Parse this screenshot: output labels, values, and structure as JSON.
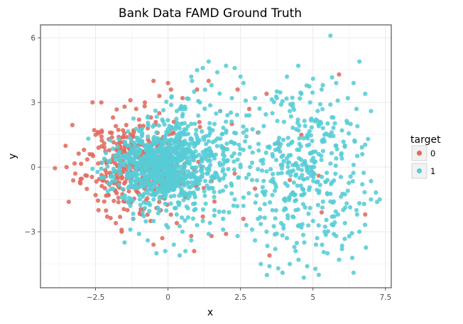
{
  "chart_data": {
    "type": "scatter",
    "title": "Bank Data FAMD Ground Truth",
    "xlabel": "x",
    "ylabel": "y",
    "xlim": [
      -4.4,
      7.7
    ],
    "ylim": [
      -5.6,
      6.6
    ],
    "xticks": [
      -2.5,
      0,
      2.5,
      5,
      7.5
    ],
    "xtick_labels": [
      "−2.5",
      "0",
      "2.5",
      "5",
      "7.5"
    ],
    "yticks": [
      -3,
      0,
      3,
      6
    ],
    "ytick_labels": [
      "−3",
      "0",
      "3",
      "6"
    ],
    "grid": true,
    "legend": {
      "title": "target",
      "position": "right"
    },
    "series": [
      {
        "name": "0",
        "color": "#e06b5e",
        "points": [
          [
            -3.9,
            -0.05
          ],
          [
            -3.5,
            0.0
          ],
          [
            -3.3,
            1.95
          ],
          [
            -3.2,
            -0.3
          ],
          [
            -3.0,
            0.15
          ],
          [
            -2.9,
            0.8
          ],
          [
            -2.8,
            -0.4
          ],
          [
            -2.7,
            0.6
          ],
          [
            -2.5,
            1.5
          ],
          [
            -2.5,
            -1.3
          ],
          [
            -2.4,
            0.9
          ],
          [
            -2.4,
            -2.0
          ],
          [
            -2.3,
            3.0
          ],
          [
            -2.2,
            1.1
          ],
          [
            -2.1,
            -2.3
          ],
          [
            -2.0,
            1.6
          ],
          [
            -1.9,
            2.3
          ],
          [
            -1.8,
            -2.6
          ],
          [
            -1.7,
            1.4
          ],
          [
            -1.6,
            -3.0
          ],
          [
            -1.5,
            2.8
          ],
          [
            -1.4,
            -2.0
          ],
          [
            -1.3,
            3.1
          ],
          [
            -1.2,
            -2.4
          ],
          [
            -1.1,
            2.7
          ],
          [
            -0.9,
            -2.2
          ],
          [
            -0.8,
            3.0
          ],
          [
            -0.6,
            -2.5
          ],
          [
            -0.5,
            4.0
          ],
          [
            -0.3,
            3.3
          ],
          [
            -0.2,
            -3.3
          ],
          [
            0.0,
            3.9
          ],
          [
            0.1,
            3.6
          ],
          [
            0.3,
            -2.6
          ],
          [
            0.5,
            3.2
          ],
          [
            0.8,
            -3.2
          ],
          [
            1.0,
            3.6
          ],
          [
            1.2,
            -2.3
          ],
          [
            1.4,
            4.0
          ],
          [
            1.6,
            -1.6
          ],
          [
            1.8,
            2.6
          ],
          [
            2.0,
            -3.1
          ],
          [
            2.2,
            2.0
          ],
          [
            2.4,
            3.6
          ],
          [
            2.6,
            -2.4
          ],
          [
            0.9,
            -3.9
          ],
          [
            1.5,
            -3.2
          ],
          [
            -0.5,
            -3.6
          ],
          [
            -0.9,
            1.2
          ],
          [
            -1.1,
            -1.1
          ],
          [
            -1.3,
            0.8
          ],
          [
            -1.7,
            -0.9
          ],
          [
            -1.9,
            0.4
          ],
          [
            -2.1,
            -0.7
          ],
          [
            -2.3,
            0.2
          ],
          [
            -1.5,
            -1.6
          ],
          [
            -0.7,
            1.8
          ],
          [
            -0.4,
            -1.9
          ],
          [
            0.2,
            2.1
          ],
          [
            0.6,
            -1.4
          ],
          [
            -1.0,
            2.2
          ],
          [
            -2.2,
            -1.6
          ],
          [
            -1.8,
            1.9
          ],
          [
            -0.3,
            2.5
          ],
          [
            2.8,
            2.7
          ],
          [
            3.1,
            1.6
          ],
          [
            3.4,
            3.4
          ],
          [
            3.8,
            1.1
          ],
          [
            3.5,
            -4.1
          ],
          [
            4.6,
            1.5
          ],
          [
            5.2,
            -0.4
          ],
          [
            5.3,
            -2.1
          ],
          [
            5.9,
            4.3
          ],
          [
            6.8,
            -2.2
          ],
          [
            4.2,
            -0.6
          ],
          [
            3.0,
            -1.0
          ],
          [
            2.3,
            -0.3
          ],
          [
            1.9,
            0.9
          ],
          [
            -0.2,
            0.4
          ],
          [
            -0.6,
            -0.8
          ]
        ]
      },
      {
        "name": "1",
        "color": "#56ccd6",
        "points": [
          [
            -1.5,
            -3.5
          ],
          [
            -1.3,
            -2.9
          ],
          [
            -1.0,
            -3.1
          ],
          [
            -0.7,
            -3.4
          ],
          [
            -0.4,
            -4.0
          ],
          [
            -0.1,
            -3.9
          ],
          [
            0.2,
            -3.6
          ],
          [
            0.4,
            -4.1
          ],
          [
            0.6,
            -3.9
          ],
          [
            0.8,
            -3.4
          ],
          [
            1.0,
            -2.7
          ],
          [
            1.2,
            -2.5
          ],
          [
            1.4,
            -3.1
          ],
          [
            1.6,
            -2.0
          ],
          [
            1.9,
            -2.4
          ],
          [
            2.1,
            -2.1
          ],
          [
            1.2,
            4.6
          ],
          [
            1.4,
            4.9
          ],
          [
            1.7,
            4.4
          ],
          [
            2.0,
            4.7
          ],
          [
            2.3,
            4.6
          ],
          [
            2.5,
            4.2
          ],
          [
            1.0,
            4.5
          ],
          [
            0.8,
            4.2
          ],
          [
            2.6,
            3.9
          ],
          [
            1.5,
            3.8
          ],
          [
            1.1,
            3.0
          ],
          [
            0.9,
            3.5
          ],
          [
            2.2,
            3.2
          ],
          [
            2.8,
            2.4
          ],
          [
            3.0,
            3.2
          ],
          [
            2.6,
            1.6
          ],
          [
            3.2,
            -4.5
          ],
          [
            3.5,
            -4.6
          ],
          [
            3.8,
            -4.7
          ],
          [
            4.2,
            -4.5
          ],
          [
            4.5,
            -4.3
          ],
          [
            4.8,
            -4.6
          ],
          [
            5.2,
            -5.0
          ],
          [
            5.5,
            -4.0
          ],
          [
            5.9,
            -4.3
          ],
          [
            6.0,
            -3.8
          ],
          [
            6.4,
            -4.9
          ],
          [
            5.6,
            6.1
          ],
          [
            6.6,
            4.9
          ],
          [
            6.4,
            3.9
          ],
          [
            6.8,
            3.4
          ],
          [
            7.0,
            2.6
          ],
          [
            6.2,
            3.2
          ],
          [
            5.6,
            2.9
          ],
          [
            5.0,
            4.1
          ],
          [
            4.6,
            3.4
          ],
          [
            4.3,
            2.8
          ],
          [
            4.0,
            2.1
          ],
          [
            3.8,
            1.2
          ],
          [
            3.6,
            0.6
          ],
          [
            3.4,
            -0.2
          ],
          [
            3.7,
            -0.8
          ],
          [
            4.0,
            -1.5
          ],
          [
            4.3,
            -2.3
          ],
          [
            4.6,
            -2.8
          ],
          [
            4.9,
            -1.9
          ],
          [
            5.2,
            -1.2
          ],
          [
            5.5,
            -0.6
          ],
          [
            5.8,
            0.4
          ],
          [
            6.1,
            1.0
          ],
          [
            6.4,
            0.1
          ],
          [
            6.7,
            -0.8
          ],
          [
            7.0,
            -1.5
          ],
          [
            6.5,
            -2.0
          ],
          [
            6.1,
            -2.6
          ],
          [
            5.8,
            -3.2
          ],
          [
            5.4,
            -3.0
          ],
          [
            5.0,
            -2.5
          ],
          [
            4.7,
            -3.5
          ],
          [
            4.4,
            -3.9
          ],
          [
            4.1,
            -3.3
          ],
          [
            3.9,
            -2.6
          ],
          [
            3.6,
            -2.0
          ],
          [
            3.3,
            -1.2
          ],
          [
            3.1,
            -2.4
          ],
          [
            2.9,
            -2.9
          ],
          [
            3.3,
            1.9
          ],
          [
            3.6,
            2.5
          ],
          [
            3.9,
            2.9
          ],
          [
            4.2,
            2.6
          ],
          [
            4.5,
            1.7
          ],
          [
            4.8,
            1.0
          ],
          [
            5.1,
            2.2
          ],
          [
            5.4,
            1.5
          ],
          [
            5.7,
            2.3
          ],
          [
            6.0,
            1.7
          ],
          [
            6.3,
            2.0
          ],
          [
            5.2,
            0.6
          ],
          [
            4.7,
            0.2
          ],
          [
            4.4,
            -0.4
          ],
          [
            4.1,
            0.4
          ],
          [
            3.8,
            -0.3
          ],
          [
            3.5,
            0.9
          ],
          [
            3.2,
            0.3
          ],
          [
            2.9,
            -0.6
          ],
          [
            2.6,
            0.8
          ],
          [
            2.3,
            1.1
          ],
          [
            2.0,
            1.6
          ],
          [
            1.8,
            2.6
          ],
          [
            1.6,
            2.0
          ],
          [
            1.4,
            1.2
          ],
          [
            1.2,
            0.7
          ],
          [
            1.0,
            1.4
          ],
          [
            0.8,
            2.0
          ],
          [
            0.6,
            2.7
          ],
          [
            0.4,
            1.8
          ],
          [
            0.2,
            1.2
          ],
          [
            0.0,
            0.6
          ],
          [
            -0.2,
            1.1
          ],
          [
            -0.4,
            1.6
          ],
          [
            -0.6,
            0.9
          ],
          [
            -0.8,
            0.3
          ],
          [
            -1.0,
            0.8
          ],
          [
            -1.2,
            0.2
          ],
          [
            -1.4,
            -0.4
          ],
          [
            -1.6,
            0.5
          ],
          [
            -1.8,
            -0.2
          ],
          [
            -2.0,
            0.3
          ],
          [
            -2.2,
            -0.5
          ],
          [
            -1.9,
            -1.0
          ],
          [
            -1.6,
            -1.4
          ],
          [
            -1.3,
            -1.8
          ],
          [
            -1.0,
            -1.3
          ],
          [
            -0.7,
            -0.7
          ],
          [
            -0.4,
            -1.2
          ],
          [
            -0.1,
            -1.7
          ],
          [
            0.2,
            -1.0
          ],
          [
            0.5,
            -0.5
          ],
          [
            0.8,
            -1.2
          ],
          [
            1.1,
            -0.6
          ],
          [
            1.4,
            -1.0
          ],
          [
            1.7,
            -0.4
          ],
          [
            2.0,
            -0.9
          ],
          [
            2.3,
            -1.5
          ],
          [
            2.6,
            -1.8
          ],
          [
            1.3,
            -1.7
          ],
          [
            0.9,
            -2.0
          ],
          [
            0.3,
            -2.2
          ],
          [
            -0.3,
            -2.0
          ],
          [
            -0.8,
            -1.9
          ],
          [
            -1.2,
            -2.4
          ],
          [
            -0.5,
            -2.5
          ],
          [
            0.0,
            -2.8
          ],
          [
            0.5,
            -3.0
          ],
          [
            0.1,
            -0.3
          ],
          [
            -0.3,
            0.0
          ],
          [
            0.4,
            0.3
          ],
          [
            -0.6,
            -0.3
          ],
          [
            -1.1,
            -0.7
          ],
          [
            -0.9,
            1.5
          ],
          [
            -0.2,
            2.2
          ],
          [
            0.3,
            2.6
          ],
          [
            -0.7,
            2.3
          ],
          [
            -1.4,
            1.0
          ],
          [
            -1.7,
            1.3
          ],
          [
            1.6,
            0.4
          ],
          [
            1.9,
            -0.1
          ],
          [
            2.2,
            0.5
          ],
          [
            2.5,
            0.0
          ],
          [
            2.7,
            -0.5
          ],
          [
            2.9,
            0.2
          ],
          [
            3.1,
            -0.1
          ],
          [
            3.6,
            -1.3
          ],
          [
            4.3,
            -1.2
          ],
          [
            5.0,
            -0.3
          ],
          [
            5.6,
            -1.6
          ],
          [
            6.2,
            -1.1
          ],
          [
            6.7,
            0.6
          ],
          [
            7.3,
            -1.5
          ],
          [
            6.9,
            1.3
          ],
          [
            5.3,
            3.6
          ],
          [
            4.9,
            3.0
          ],
          [
            4.1,
            4.2
          ],
          [
            5.8,
            3.9
          ],
          [
            6.5,
            2.7
          ],
          [
            3.7,
            -3.8
          ],
          [
            4.0,
            -2.0
          ],
          [
            4.6,
            -1.3
          ],
          [
            5.1,
            -3.6
          ],
          [
            5.7,
            -2.7
          ],
          [
            6.6,
            -3.0
          ],
          [
            3.4,
            -3.0
          ],
          [
            3.0,
            -3.4
          ],
          [
            2.7,
            -2.7
          ],
          [
            2.4,
            -3.2
          ],
          [
            1.9,
            -2.9
          ]
        ]
      }
    ],
    "clusters": [
      {
        "series": "0",
        "cx": -1.0,
        "cy": 0.1,
        "sx": 0.9,
        "sy": 1.0,
        "n": 380,
        "seed": 11
      },
      {
        "series": "1",
        "cx": -0.4,
        "cy": 0.0,
        "sx": 0.75,
        "sy": 0.85,
        "n": 700,
        "seed": 23
      },
      {
        "series": "1",
        "cx": 1.0,
        "cy": 0.6,
        "sx": 0.8,
        "sy": 1.4,
        "n": 260,
        "seed": 37
      },
      {
        "series": "1",
        "cx": 4.8,
        "cy": -0.3,
        "sx": 1.0,
        "sy": 1.9,
        "n": 320,
        "seed": 51
      }
    ]
  }
}
